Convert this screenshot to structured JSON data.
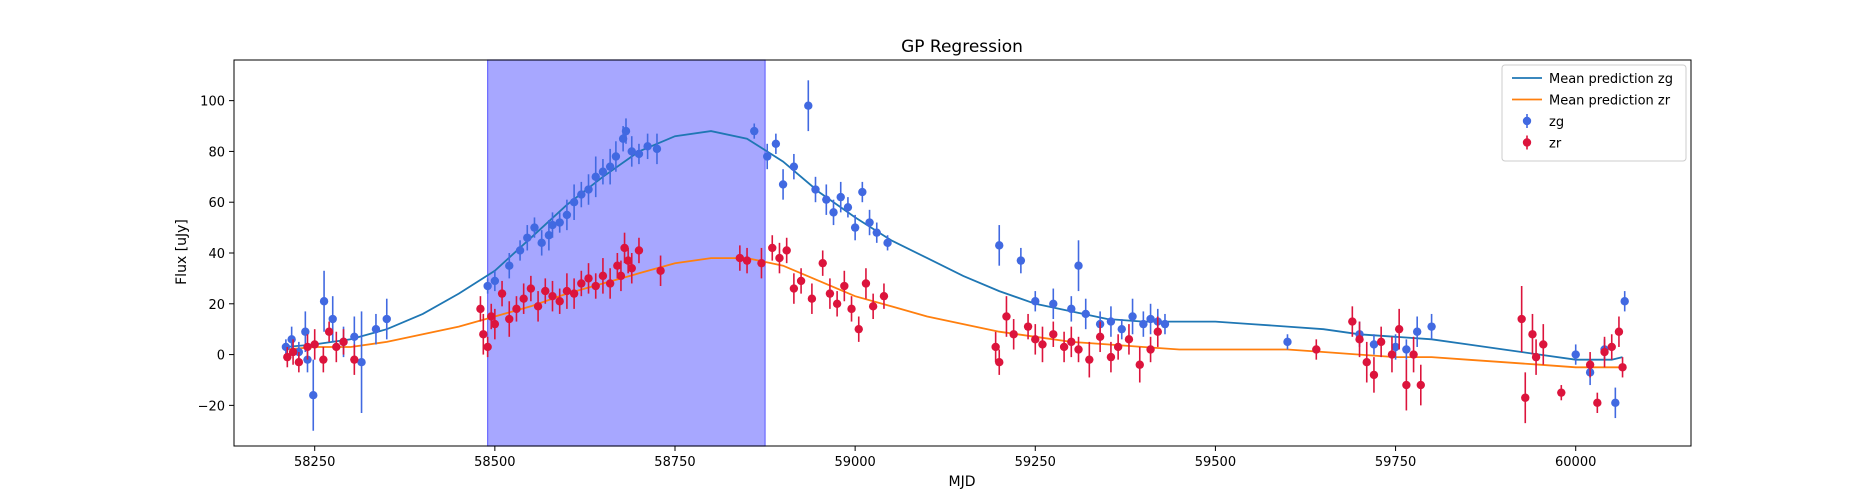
{
  "chart_data": {
    "type": "scatter",
    "title": "GP Regression",
    "xlabel": "MJD",
    "ylabel": "Flux [uJy]",
    "xlim": [
      58138,
      60160
    ],
    "ylim": [
      -36,
      116
    ],
    "xticks": [
      58250,
      58500,
      58750,
      59000,
      59250,
      59500,
      59750,
      60000
    ],
    "yticks": [
      -20,
      0,
      20,
      40,
      60,
      80,
      100
    ],
    "grid": false,
    "legend_position": "top-right",
    "shaded_region": {
      "x_start": 58490,
      "x_end": 58875,
      "color": "#a7a7ff"
    },
    "colors": {
      "mean_zg": "#1f77b4",
      "mean_zr": "#ff7f0e",
      "zg": "#4169e1",
      "zr": "#dc143c"
    },
    "legend": [
      {
        "label": "Mean prediction zg",
        "kind": "line",
        "color": "#1f77b4"
      },
      {
        "label": "Mean prediction zr",
        "kind": "line",
        "color": "#ff7f0e"
      },
      {
        "label": "zg",
        "kind": "errorbar",
        "color": "#4169e1"
      },
      {
        "label": "zr",
        "kind": "errorbar",
        "color": "#dc143c"
      }
    ],
    "lines": [
      {
        "name": "Mean prediction zg",
        "color": "#1f77b4",
        "x": [
          58210,
          58250,
          58300,
          58350,
          58400,
          58450,
          58500,
          58550,
          58600,
          58650,
          58700,
          58750,
          58800,
          58850,
          58900,
          58950,
          59000,
          59050,
          59100,
          59150,
          59200,
          59250,
          59300,
          59350,
          59400,
          59450,
          59500,
          59550,
          59600,
          59650,
          59700,
          59750,
          59800,
          59850,
          59900,
          59950,
          60000,
          60050,
          60065
        ],
        "y": [
          3,
          4,
          6,
          10,
          16,
          24,
          33,
          46,
          59,
          70,
          80,
          86,
          88,
          85,
          76,
          64,
          54,
          45,
          38,
          31,
          25,
          20,
          17,
          14,
          13,
          13,
          13,
          12,
          11,
          10,
          8,
          7,
          6,
          4,
          2,
          0,
          -2,
          -2,
          -1
        ]
      },
      {
        "name": "Mean prediction zr",
        "color": "#ff7f0e",
        "x": [
          58210,
          58250,
          58300,
          58350,
          58400,
          58450,
          58500,
          58550,
          58600,
          58650,
          58700,
          58750,
          58800,
          58850,
          58900,
          58950,
          59000,
          59050,
          59100,
          59150,
          59200,
          59250,
          59300,
          59350,
          59400,
          59450,
          59500,
          59550,
          59600,
          59650,
          59700,
          59750,
          59800,
          59850,
          59900,
          59950,
          60000,
          60050,
          60065
        ],
        "y": [
          2,
          3,
          3,
          5,
          8,
          11,
          15,
          19,
          24,
          28,
          32,
          36,
          38,
          38,
          35,
          29,
          23,
          19,
          15,
          12,
          9,
          7,
          5,
          4,
          3,
          2,
          2,
          2,
          2,
          1,
          0,
          -1,
          -1,
          -2,
          -3,
          -4,
          -5,
          -5,
          -5
        ]
      }
    ],
    "series": [
      {
        "name": "zg",
        "color": "#4169e1",
        "x": [
          58210,
          58218,
          58228,
          58237,
          58240,
          58248,
          58263,
          58275,
          58290,
          58305,
          58315,
          58335,
          58350,
          58490,
          58500,
          58520,
          58535,
          58545,
          58555,
          58565,
          58575,
          58580,
          58590,
          58600,
          58610,
          58620,
          58630,
          58640,
          58650,
          58660,
          58668,
          58678,
          58682,
          58690,
          58700,
          58712,
          58725,
          58860,
          58878,
          58890,
          58900,
          58915,
          58935,
          58945,
          58960,
          58970,
          58980,
          58990,
          59000,
          59010,
          59020,
          59030,
          59045,
          59200,
          59230,
          59250,
          59275,
          59300,
          59310,
          59320,
          59340,
          59355,
          59370,
          59385,
          59400,
          59410,
          59420,
          59430,
          59600,
          59700,
          59720,
          59750,
          59765,
          59780,
          59800,
          60000,
          60020,
          60040,
          60055,
          60068
        ],
        "y": [
          3,
          6,
          1,
          9,
          -2,
          -16,
          21,
          14,
          5,
          7,
          -3,
          10,
          14,
          27,
          29,
          35,
          41,
          46,
          50,
          44,
          47,
          51,
          52,
          55,
          60,
          63,
          65,
          70,
          72,
          74,
          78,
          85,
          88,
          80,
          79,
          82,
          81,
          88,
          78,
          83,
          67,
          74,
          98,
          65,
          61,
          56,
          62,
          58,
          50,
          64,
          52,
          48,
          44,
          43,
          37,
          21,
          20,
          18,
          35,
          16,
          12,
          13,
          10,
          15,
          12,
          14,
          13,
          12,
          5,
          8,
          4,
          3,
          2,
          9,
          11,
          0,
          -7,
          2,
          -19,
          21
        ],
        "err": [
          3,
          5,
          4,
          8,
          5,
          14,
          12,
          9,
          6,
          8,
          20,
          6,
          8,
          3,
          4,
          5,
          4,
          5,
          4,
          5,
          6,
          5,
          4,
          6,
          7,
          5,
          6,
          8,
          5,
          7,
          6,
          5,
          5,
          6,
          4,
          5,
          6,
          3,
          5,
          4,
          6,
          5,
          10,
          5,
          6,
          5,
          6,
          4,
          5,
          4,
          5,
          4,
          3,
          8,
          5,
          4,
          6,
          5,
          10,
          6,
          5,
          6,
          4,
          7,
          5,
          6,
          5,
          4,
          3,
          5,
          4,
          5,
          4,
          6,
          5,
          4,
          5,
          4,
          6,
          4
        ]
      },
      {
        "name": "zr",
        "color": "#dc143c",
        "x": [
          58212,
          58220,
          58228,
          58240,
          58250,
          58262,
          58270,
          58280,
          58290,
          58305,
          58480,
          58484,
          58490,
          58495,
          58500,
          58510,
          58520,
          58530,
          58540,
          58550,
          58560,
          58570,
          58580,
          58590,
          58600,
          58610,
          58620,
          58630,
          58640,
          58650,
          58660,
          58670,
          58675,
          58680,
          58685,
          58690,
          58700,
          58730,
          58840,
          58850,
          58870,
          58885,
          58895,
          58905,
          58915,
          58925,
          58940,
          58955,
          58965,
          58975,
          58985,
          58995,
          59005,
          59015,
          59025,
          59040,
          59195,
          59200,
          59210,
          59220,
          59240,
          59250,
          59260,
          59275,
          59290,
          59300,
          59310,
          59325,
          59340,
          59355,
          59365,
          59380,
          59395,
          59410,
          59420,
          59640,
          59690,
          59700,
          59710,
          59720,
          59730,
          59745,
          59755,
          59765,
          59775,
          59785,
          59925,
          59930,
          59940,
          59945,
          59955,
          59980,
          60020,
          60030,
          60040,
          60050,
          60060,
          60065
        ],
        "y": [
          -1,
          1,
          -3,
          3,
          4,
          -2,
          9,
          3,
          5,
          -2,
          18,
          8,
          3,
          15,
          12,
          24,
          14,
          18,
          22,
          26,
          19,
          25,
          23,
          21,
          25,
          24,
          28,
          30,
          27,
          31,
          28,
          35,
          31,
          42,
          37,
          34,
          41,
          33,
          38,
          37,
          36,
          42,
          38,
          41,
          26,
          29,
          22,
          36,
          24,
          20,
          27,
          18,
          10,
          28,
          19,
          23,
          3,
          -3,
          15,
          8,
          11,
          6,
          4,
          8,
          3,
          5,
          2,
          -2,
          7,
          -1,
          3,
          6,
          -4,
          2,
          9,
          2,
          13,
          6,
          -3,
          -8,
          5,
          0,
          10,
          -12,
          0,
          -12,
          14,
          -17,
          8,
          -1,
          4,
          -15,
          -4,
          -19,
          1,
          3,
          9,
          -5
        ],
        "err": [
          4,
          5,
          4,
          5,
          6,
          5,
          4,
          6,
          5,
          6,
          5,
          8,
          4,
          5,
          6,
          5,
          7,
          5,
          6,
          5,
          6,
          5,
          6,
          5,
          7,
          6,
          5,
          6,
          5,
          7,
          6,
          5,
          6,
          6,
          5,
          6,
          5,
          6,
          5,
          5,
          6,
          5,
          6,
          5,
          6,
          5,
          6,
          5,
          6,
          5,
          6,
          5,
          5,
          6,
          5,
          5,
          6,
          5,
          8,
          6,
          5,
          6,
          7,
          5,
          6,
          6,
          5,
          7,
          6,
          6,
          5,
          6,
          7,
          5,
          6,
          4,
          6,
          7,
          8,
          7,
          6,
          7,
          8,
          10,
          7,
          8,
          13,
          10,
          8,
          7,
          8,
          3,
          5,
          4,
          6,
          5,
          6,
          4
        ]
      }
    ]
  }
}
